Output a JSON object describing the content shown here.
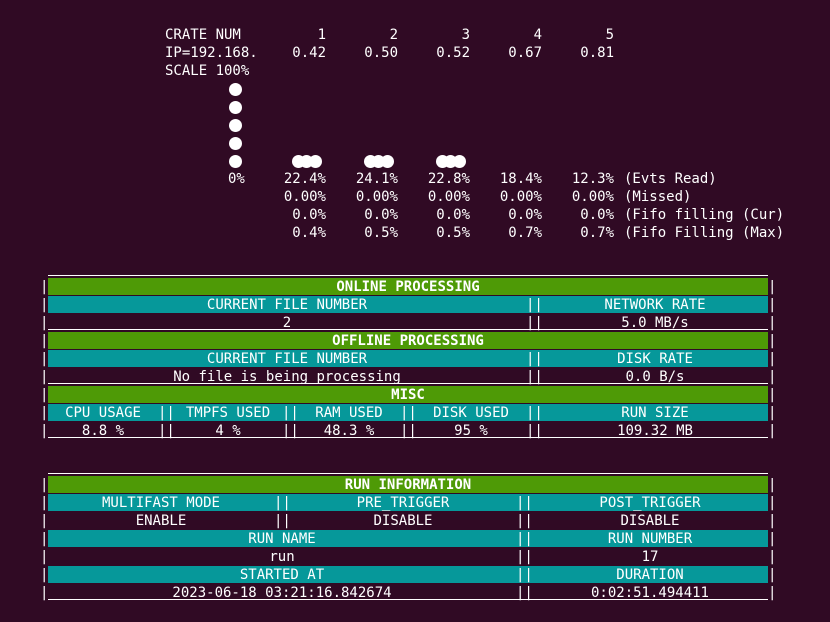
{
  "crate": {
    "header_label": "CRATE NUM",
    "ip_label": "IP=192.168.",
    "scale_label": "SCALE 100%",
    "zero_label": "0%",
    "columns": [
      {
        "num": "1",
        "ip": "0.42",
        "evts": "22.4%",
        "missed": "0.00%",
        "fifo_cur": "0.0%",
        "fifo_max": "0.4%"
      },
      {
        "num": "2",
        "ip": "0.50",
        "evts": "24.1%",
        "missed": "0.00%",
        "fifo_cur": "0.0%",
        "fifo_max": "0.5%"
      },
      {
        "num": "3",
        "ip": "0.52",
        "evts": "22.8%",
        "missed": "0.00%",
        "fifo_cur": "0.0%",
        "fifo_max": "0.5%"
      },
      {
        "num": "4",
        "ip": "0.67",
        "evts": "18.4%",
        "missed": "0.00%",
        "fifo_cur": "0.0%",
        "fifo_max": "0.7%"
      },
      {
        "num": "5",
        "ip": "0.81",
        "evts": "12.3%",
        "missed": "0.00%",
        "fifo_cur": "0.0%",
        "fifo_max": "0.7%"
      }
    ],
    "row_labels": {
      "evts": "(Evts Read)",
      "missed": "(Missed)",
      "fifo_cur": "(Fifo filling (Cur)",
      "fifo_max": "(Fifo Filling (Max)"
    }
  },
  "online": {
    "title": "ONLINE PROCESSING",
    "file_label": "CURRENT FILE NUMBER",
    "file_value": "2",
    "rate_label": "NETWORK RATE",
    "rate_value": "5.0 MB/s"
  },
  "offline": {
    "title": "OFFLINE PROCESSING",
    "file_label": "CURRENT FILE NUMBER",
    "file_value": "No file is being processing",
    "rate_label": "DISK RATE",
    "rate_value": "0.0 B/s"
  },
  "misc": {
    "title": "MISC",
    "cpu_label": "CPU USAGE",
    "cpu_value": "8.8 %",
    "tmpfs_label": "TMPFS USED",
    "tmpfs_value": "4 %",
    "ram_label": "RAM USED",
    "ram_value": "48.3 %",
    "disk_label": "DISK USED",
    "disk_value": "95 %",
    "runsize_label": "RUN SIZE",
    "runsize_value": "109.32 MB"
  },
  "run": {
    "title": "RUN INFORMATION",
    "multifast_label": "MULTIFAST MODE",
    "multifast_value": "ENABLE",
    "pre_label": "PRE_TRIGGER",
    "pre_value": "DISABLE",
    "post_label": "POST_TRIGGER",
    "post_value": "DISABLE",
    "name_label": "RUN NAME",
    "name_value": "run",
    "number_label": "RUN NUMBER",
    "number_value": "17",
    "started_label": "STARTED AT",
    "started_value": "2023-06-18 03:21:16.842674",
    "duration_label": "DURATION",
    "duration_value": "0:02:51.494411"
  },
  "colors": {
    "background": "#300a24",
    "header_green": "#4e9a06",
    "label_cyan": "#06989a",
    "text": "#ffffff"
  }
}
